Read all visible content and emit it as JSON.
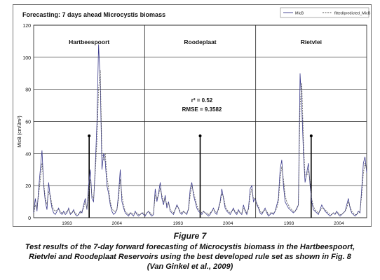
{
  "figure": {
    "caption_title": "Figure 7",
    "caption_lines": [
      "Test results of the 7-day forward forecasting of Microcystis biomass in the Hartbeespoort,",
      "Rietvlei and Roodeplaat Reservoirs using the best developed rule set as shown in Fig. 8",
      "(Van Ginkel et al., 2009)"
    ]
  },
  "chart_data": {
    "type": "line",
    "title": "Forecasting: 7 days ahead Microcystis biomass",
    "ylabel": "MicB (cm/3m³)",
    "xlabel": "",
    "ylim": [
      0,
      120
    ],
    "yticks": [
      "0",
      "20",
      "40",
      "60",
      "80",
      "100",
      "120"
    ],
    "grid": true,
    "legend_position": "top-right",
    "panels": [
      {
        "name": "Hartbeespoort",
        "x_ticks": [
          "1993",
          "2004"
        ],
        "marker_value": 51
      },
      {
        "name": "Roodeplaat",
        "x_ticks": [
          "1993",
          "2004"
        ],
        "marker_value": 51
      },
      {
        "name": "Rietvlei",
        "x_ticks": [
          "1993",
          "2004"
        ],
        "marker_value": 51
      }
    ],
    "annotations": [
      "r² = 0.52",
      "RMSE = 9.3582"
    ],
    "series": [
      {
        "name": "MicB",
        "color": "#3a3a8c",
        "style": "solid",
        "values": [
          3,
          12,
          4,
          18,
          30,
          42,
          20,
          10,
          5,
          22,
          12,
          6,
          3,
          2,
          4,
          6,
          3,
          2,
          4,
          2,
          3,
          6,
          2,
          3,
          5,
          2,
          1,
          2,
          4,
          3,
          8,
          12,
          5,
          20,
          30,
          12,
          10,
          32,
          60,
          108,
          85,
          30,
          40,
          35,
          20,
          15,
          8,
          4,
          2,
          3,
          5,
          15,
          30,
          10,
          6,
          3,
          2,
          1,
          3,
          2,
          1,
          4,
          2,
          1,
          2,
          3,
          2,
          1,
          3,
          4,
          2,
          1,
          2,
          18,
          10,
          15,
          22,
          12,
          8,
          14,
          6,
          10,
          4,
          3,
          2,
          5,
          8,
          6,
          3,
          2,
          4,
          3,
          2,
          6,
          18,
          22,
          14,
          10,
          6,
          4,
          3,
          2,
          4,
          3,
          2,
          1,
          2,
          4,
          6,
          3,
          2,
          6,
          10,
          18,
          12,
          6,
          4,
          3,
          2,
          4,
          6,
          3,
          2,
          5,
          3,
          2,
          8,
          4,
          2,
          6,
          18,
          20,
          10,
          12,
          8,
          6,
          3,
          2,
          4,
          6,
          3,
          1,
          2,
          3,
          2,
          4,
          8,
          12,
          30,
          36,
          20,
          10,
          8,
          6,
          5,
          4,
          3,
          4,
          6,
          8,
          90,
          70,
          40,
          22,
          28,
          34,
          20,
          10,
          5,
          4,
          3,
          2,
          5,
          8,
          6,
          4,
          3,
          2,
          1,
          2,
          3,
          2,
          4,
          2,
          1,
          2,
          3,
          4,
          8,
          12,
          6,
          3,
          2,
          1,
          2,
          4,
          3,
          18,
          34,
          38,
          28
        ]
      },
      {
        "name": "fitted/predicted_MicB",
        "color": "#555555",
        "style": "dashed",
        "values": [
          2,
          8,
          6,
          14,
          24,
          34,
          22,
          12,
          8,
          16,
          14,
          8,
          5,
          4,
          5,
          5,
          4,
          3,
          3,
          3,
          4,
          5,
          3,
          3,
          4,
          3,
          2,
          2,
          3,
          4,
          6,
          10,
          6,
          15,
          24,
          14,
          12,
          28,
          48,
          80,
          92,
          40,
          36,
          40,
          26,
          18,
          10,
          6,
          4,
          4,
          5,
          12,
          24,
          14,
          8,
          4,
          3,
          2,
          3,
          3,
          2,
          3,
          3,
          2,
          2,
          3,
          3,
          2,
          3,
          4,
          3,
          2,
          3,
          14,
          12,
          14,
          18,
          14,
          10,
          12,
          8,
          9,
          5,
          4,
          3,
          5,
          7,
          6,
          4,
          3,
          4,
          3,
          3,
          5,
          14,
          20,
          16,
          12,
          8,
          5,
          4,
          3,
          4,
          3,
          3,
          2,
          3,
          4,
          5,
          4,
          3,
          5,
          9,
          15,
          13,
          8,
          5,
          4,
          3,
          4,
          5,
          4,
          3,
          4,
          3,
          3,
          6,
          5,
          3,
          5,
          14,
          18,
          12,
          12,
          9,
          7,
          4,
          3,
          4,
          5,
          4,
          2,
          3,
          3,
          3,
          4,
          6,
          10,
          24,
          32,
          24,
          14,
          10,
          8,
          6,
          5,
          4,
          4,
          5,
          8,
          70,
          84,
          48,
          26,
          26,
          30,
          22,
          12,
          7,
          5,
          4,
          3,
          4,
          6,
          6,
          5,
          4,
          3,
          2,
          2,
          3,
          3,
          3,
          3,
          2,
          2,
          3,
          4,
          6,
          10,
          7,
          4,
          3,
          2,
          2,
          3,
          4,
          14,
          28,
          34,
          30
        ]
      }
    ]
  }
}
